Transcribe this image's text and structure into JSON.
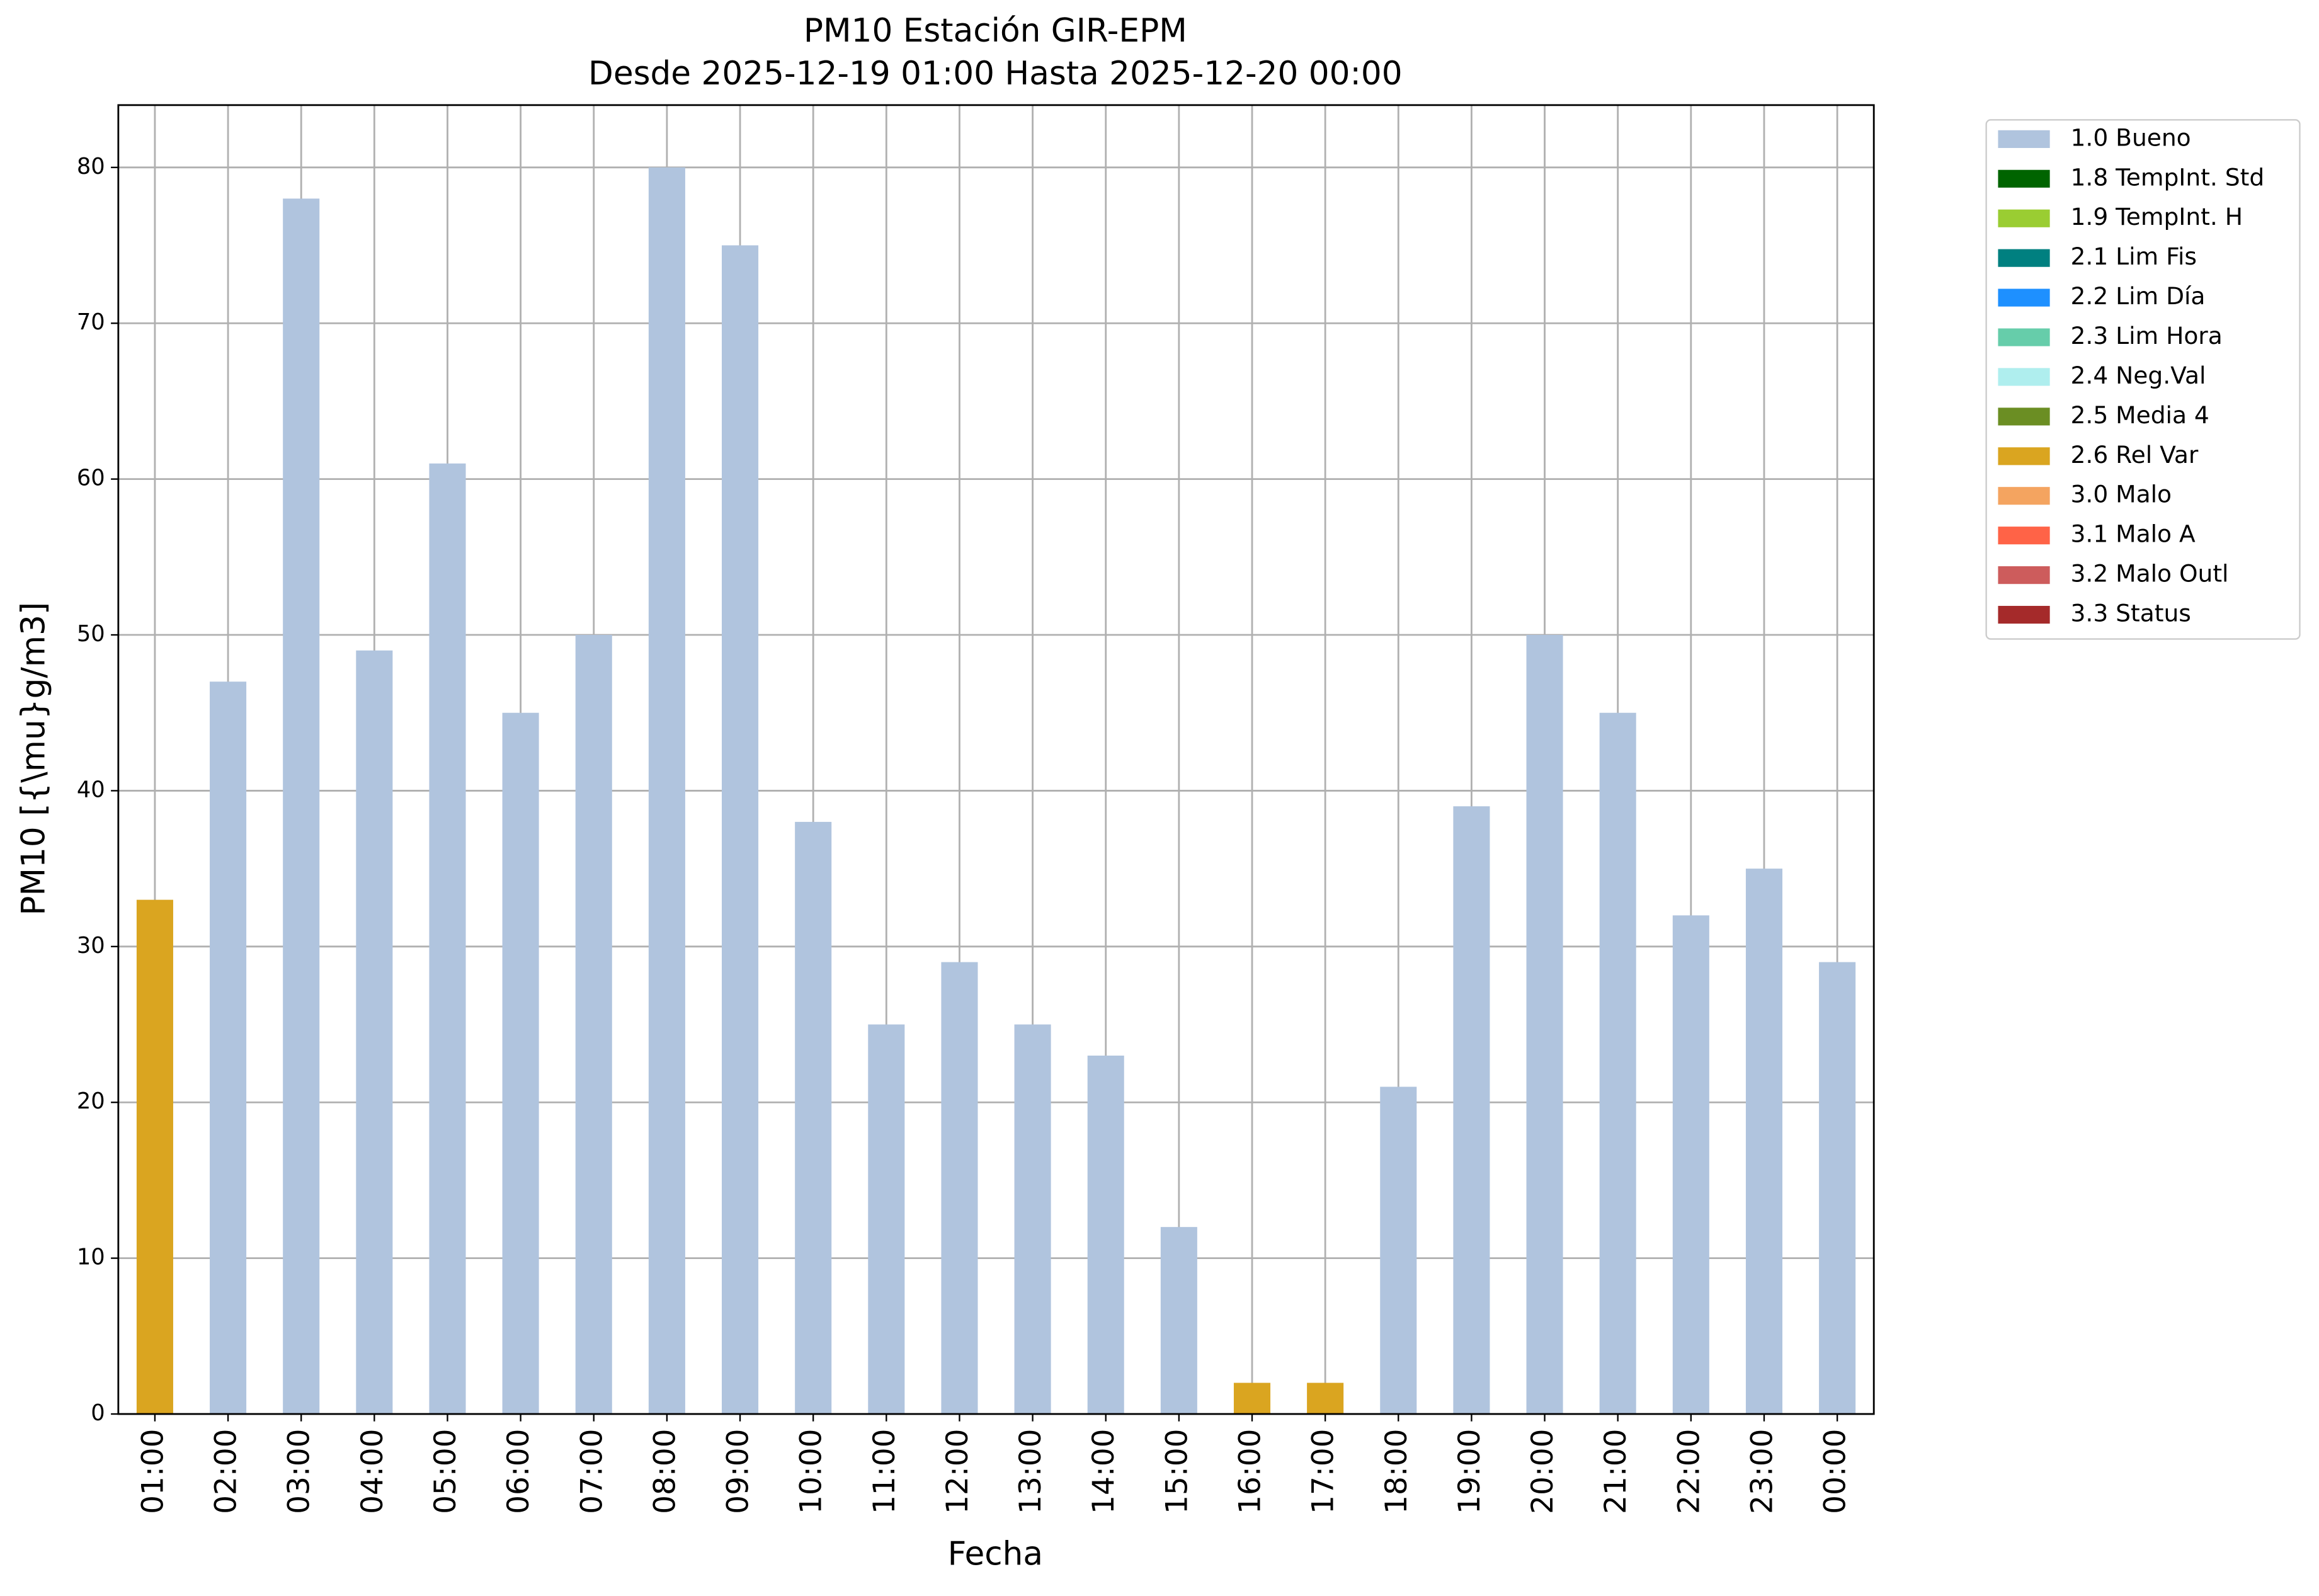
{
  "chart_data": {
    "type": "stacked_bar",
    "title": "PM10 Estación GIR-EPM",
    "subtitle": "Desde 2025-12-19 01:00 Hasta 2025-12-20 00:00",
    "x_label": "Fecha",
    "y_label": "PM10 [{\\mu}g/m3]",
    "categories": [
      "01:00",
      "02:00",
      "03:00",
      "04:00",
      "05:00",
      "06:00",
      "07:00",
      "08:00",
      "09:00",
      "10:00",
      "11:00",
      "12:00",
      "13:00",
      "14:00",
      "15:00",
      "16:00",
      "17:00",
      "18:00",
      "19:00",
      "20:00",
      "21:00",
      "22:00",
      "23:00",
      "00:00"
    ],
    "series": [
      {
        "name": "1.0 Bueno",
        "color": "#b0c4de",
        "values": [
          0,
          47,
          78,
          49,
          61,
          45,
          50,
          80,
          75,
          38,
          25,
          29,
          25,
          23,
          12,
          0,
          0,
          21,
          39,
          50,
          45,
          32,
          35,
          29
        ]
      },
      {
        "name": "1.8 TempInt. Std",
        "color": "#006400",
        "values": [
          0,
          0,
          0,
          0,
          0,
          0,
          0,
          0,
          0,
          0,
          0,
          0,
          0,
          0,
          0,
          0,
          0,
          0,
          0,
          0,
          0,
          0,
          0,
          0
        ]
      },
      {
        "name": "1.9 TempInt. H",
        "color": "#9acd32",
        "values": [
          0,
          0,
          0,
          0,
          0,
          0,
          0,
          0,
          0,
          0,
          0,
          0,
          0,
          0,
          0,
          0,
          0,
          0,
          0,
          0,
          0,
          0,
          0,
          0
        ]
      },
      {
        "name": "2.1 Lim Fis",
        "color": "#008080",
        "values": [
          0,
          0,
          0,
          0,
          0,
          0,
          0,
          0,
          0,
          0,
          0,
          0,
          0,
          0,
          0,
          0,
          0,
          0,
          0,
          0,
          0,
          0,
          0,
          0
        ]
      },
      {
        "name": "2.2 Lim Día",
        "color": "#1e90ff",
        "values": [
          0,
          0,
          0,
          0,
          0,
          0,
          0,
          0,
          0,
          0,
          0,
          0,
          0,
          0,
          0,
          0,
          0,
          0,
          0,
          0,
          0,
          0,
          0,
          0
        ]
      },
      {
        "name": "2.3 Lim Hora",
        "color": "#66cdaa",
        "values": [
          0,
          0,
          0,
          0,
          0,
          0,
          0,
          0,
          0,
          0,
          0,
          0,
          0,
          0,
          0,
          0,
          0,
          0,
          0,
          0,
          0,
          0,
          0,
          0
        ]
      },
      {
        "name": "2.4 Neg.Val",
        "color": "#afeeee",
        "values": [
          0,
          0,
          0,
          0,
          0,
          0,
          0,
          0,
          0,
          0,
          0,
          0,
          0,
          0,
          0,
          0,
          0,
          0,
          0,
          0,
          0,
          0,
          0,
          0
        ]
      },
      {
        "name": "2.5 Media 4",
        "color": "#6b8e23",
        "values": [
          0,
          0,
          0,
          0,
          0,
          0,
          0,
          0,
          0,
          0,
          0,
          0,
          0,
          0,
          0,
          0,
          0,
          0,
          0,
          0,
          0,
          0,
          0,
          0
        ]
      },
      {
        "name": "2.6 Rel Var",
        "color": "#daa520",
        "values": [
          33,
          0,
          0,
          0,
          0,
          0,
          0,
          0,
          0,
          0,
          0,
          0,
          0,
          0,
          0,
          2,
          2,
          0,
          0,
          0,
          0,
          0,
          0,
          0
        ]
      },
      {
        "name": "3.0 Malo",
        "color": "#f4a460",
        "values": [
          0,
          0,
          0,
          0,
          0,
          0,
          0,
          0,
          0,
          0,
          0,
          0,
          0,
          0,
          0,
          0,
          0,
          0,
          0,
          0,
          0,
          0,
          0,
          0
        ]
      },
      {
        "name": "3.1 Malo A",
        "color": "#ff6347",
        "values": [
          0,
          0,
          0,
          0,
          0,
          0,
          0,
          0,
          0,
          0,
          0,
          0,
          0,
          0,
          0,
          0,
          0,
          0,
          0,
          0,
          0,
          0,
          0,
          0
        ]
      },
      {
        "name": "3.2 Malo Outl",
        "color": "#cd5c5c",
        "values": [
          0,
          0,
          0,
          0,
          0,
          0,
          0,
          0,
          0,
          0,
          0,
          0,
          0,
          0,
          0,
          0,
          0,
          0,
          0,
          0,
          0,
          0,
          0,
          0
        ]
      },
      {
        "name": "3.3 Status",
        "color": "#a52a2a",
        "values": [
          0,
          0,
          0,
          0,
          0,
          0,
          0,
          0,
          0,
          0,
          0,
          0,
          0,
          0,
          0,
          0,
          0,
          0,
          0,
          0,
          0,
          0,
          0,
          0
        ]
      }
    ],
    "ylim": [
      0,
      84
    ],
    "yticks": [
      0,
      10,
      20,
      30,
      40,
      50,
      60,
      70,
      80
    ],
    "grid": true,
    "legend": "outside-upper-right"
  }
}
